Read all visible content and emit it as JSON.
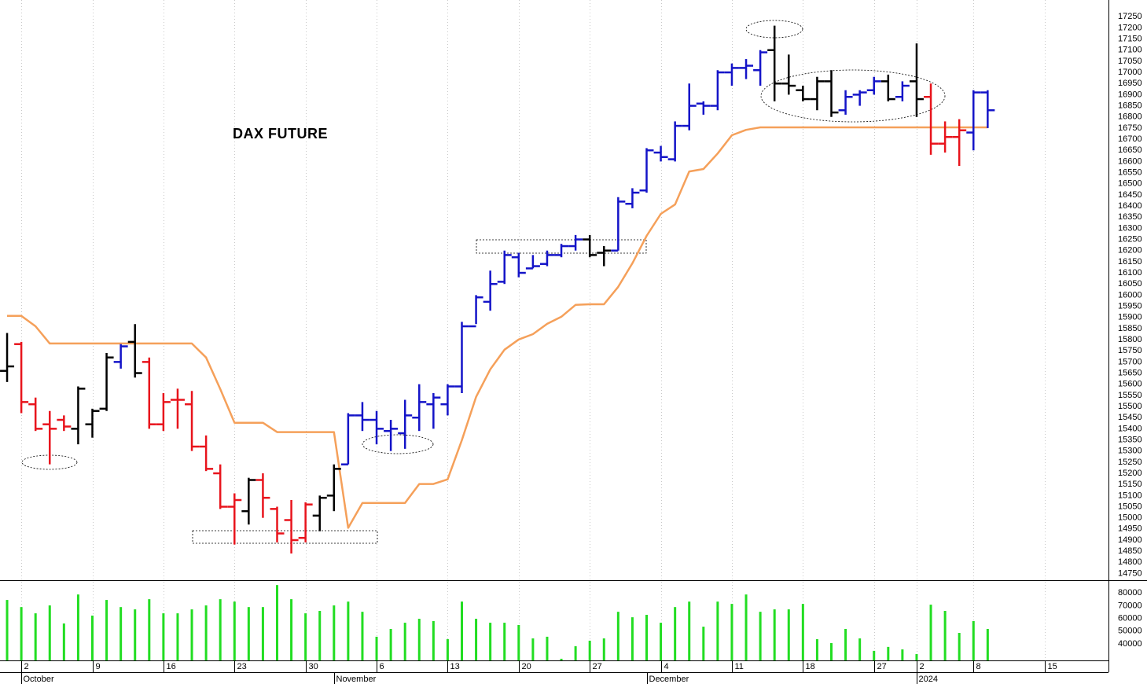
{
  "chart_data": {
    "type": "ohlc",
    "title": "DAX FUTURE",
    "x": [
      0,
      1,
      2,
      3,
      4,
      5,
      6,
      7,
      8,
      9,
      10,
      11,
      12,
      13,
      14,
      15,
      16,
      17,
      18,
      19,
      20,
      21,
      22,
      23,
      24,
      25,
      26,
      27,
      28,
      29,
      30,
      31,
      32,
      33,
      34,
      35,
      36,
      37,
      38,
      39,
      40,
      41,
      42,
      43,
      44,
      45,
      46,
      47,
      48,
      49,
      50,
      51,
      52,
      53,
      54,
      55,
      56,
      57,
      58,
      59,
      60,
      61,
      62,
      63,
      64,
      65,
      66,
      67,
      68,
      69
    ],
    "xlim": [
      -0.5,
      77.5
    ],
    "xticks": [
      {
        "value": 1,
        "label": "2"
      },
      {
        "value": 6,
        "label": "9"
      },
      {
        "value": 11,
        "label": "16"
      },
      {
        "value": 16,
        "label": "23"
      },
      {
        "value": 21,
        "label": "30"
      },
      {
        "value": 26,
        "label": "6"
      },
      {
        "value": 31,
        "label": "13"
      },
      {
        "value": 36,
        "label": "20"
      },
      {
        "value": 41,
        "label": "27"
      },
      {
        "value": 46,
        "label": "4"
      },
      {
        "value": 51,
        "label": "11"
      },
      {
        "value": 56,
        "label": "18"
      },
      {
        "value": 61,
        "label": "27"
      },
      {
        "value": 64,
        "label": "2"
      },
      {
        "value": 68,
        "label": "8"
      },
      {
        "value": 73,
        "label": "15"
      }
    ],
    "month_ticks": [
      {
        "value": 1,
        "label": "October"
      },
      {
        "value": 23,
        "label": "November"
      },
      {
        "value": 45,
        "label": "December"
      },
      {
        "value": 64,
        "label": "2024"
      }
    ],
    "open": [
      15660,
      15780,
      15510,
      15420,
      15440,
      15400,
      15420,
      15490,
      15700,
      15790,
      15700,
      15420,
      15530,
      15510,
      15320,
      15200,
      15050,
      15030,
      15170,
      15040,
      14990,
      14910,
      15010,
      15100,
      15240,
      15460,
      15440,
      15390,
      15380,
      15450,
      15510,
      15510,
      15590,
      15860,
      15970,
      16060,
      16170,
      16120,
      16140,
      16180,
      16220,
      16250,
      16190,
      16200,
      16410,
      16470,
      16640,
      16610,
      16760,
      16860,
      16850,
      17000,
      17020,
      17010,
      17100,
      16950,
      16920,
      16880,
      16960,
      16830,
      16900,
      16920,
      16960,
      16890,
      16960,
      16890,
      16680,
      16710,
      16730,
      16910
    ],
    "high": [
      15830,
      15790,
      15540,
      15480,
      15460,
      15590,
      15490,
      15740,
      15780,
      15870,
      15720,
      15560,
      15580,
      15570,
      15370,
      15240,
      15110,
      15180,
      15200,
      15050,
      15080,
      15070,
      15100,
      15240,
      15470,
      15520,
      15480,
      15440,
      15530,
      15600,
      15560,
      15600,
      15880,
      16000,
      16110,
      16200,
      16190,
      16180,
      16200,
      16230,
      16270,
      16270,
      16220,
      16440,
      16480,
      16660,
      16670,
      16780,
      16950,
      16870,
      17010,
      17040,
      17060,
      17100,
      17210,
      17080,
      16940,
      16980,
      17010,
      16920,
      16920,
      16980,
      16990,
      16960,
      17130,
      16950,
      16780,
      16790,
      16920,
      16920
    ],
    "low": [
      15610,
      15470,
      15390,
      15240,
      15390,
      15330,
      15360,
      15480,
      15670,
      15630,
      15400,
      15390,
      15400,
      15300,
      15210,
      15040,
      14880,
      14970,
      15000,
      14890,
      14840,
      14890,
      14940,
      15030,
      15240,
      15390,
      15330,
      15300,
      15310,
      15390,
      15400,
      15460,
      15560,
      15870,
      15930,
      16050,
      16080,
      16120,
      16130,
      16170,
      16200,
      16170,
      16130,
      16200,
      16390,
      16460,
      16600,
      16600,
      16740,
      16810,
      16830,
      16940,
      16970,
      16940,
      16870,
      16900,
      16870,
      16830,
      16800,
      16810,
      16850,
      16900,
      16870,
      16870,
      16800,
      16630,
      16640,
      16580,
      16650,
      16750
    ],
    "close": [
      15680,
      15520,
      15400,
      15400,
      15410,
      15580,
      15480,
      15720,
      15770,
      15650,
      15420,
      15520,
      15530,
      15320,
      15220,
      15050,
      15080,
      15170,
      15090,
      14930,
      14900,
      15060,
      15090,
      15220,
      15460,
      15440,
      15400,
      15400,
      15460,
      15520,
      15540,
      15590,
      15860,
      15990,
      16050,
      16180,
      16100,
      16130,
      16180,
      16220,
      16250,
      16180,
      16200,
      16420,
      16460,
      16650,
      16620,
      16760,
      16850,
      16850,
      17000,
      17020,
      17030,
      17090,
      16950,
      16940,
      16880,
      16960,
      16820,
      16890,
      16910,
      16960,
      16880,
      16940,
      16880,
      16680,
      16710,
      16740,
      16910,
      16830
    ],
    "bar_colors": [
      "#000000",
      "#e8141c",
      "#e8141c",
      "#e8141c",
      "#e8141c",
      "#000000",
      "#000000",
      "#000000",
      "#1414c8",
      "#000000",
      "#e8141c",
      "#e8141c",
      "#e8141c",
      "#e8141c",
      "#e8141c",
      "#e8141c",
      "#e8141c",
      "#000000",
      "#e8141c",
      "#e8141c",
      "#e8141c",
      "#e8141c",
      "#000000",
      "#000000",
      "#1414c8",
      "#1414c8",
      "#1414c8",
      "#1414c8",
      "#1414c8",
      "#1414c8",
      "#1414c8",
      "#1414c8",
      "#1414c8",
      "#1414c8",
      "#1414c8",
      "#1414c8",
      "#1414c8",
      "#1414c8",
      "#1414c8",
      "#1414c8",
      "#1414c8",
      "#000000",
      "#000000",
      "#1414c8",
      "#1414c8",
      "#1414c8",
      "#1414c8",
      "#1414c8",
      "#1414c8",
      "#1414c8",
      "#1414c8",
      "#1414c8",
      "#1414c8",
      "#1414c8",
      "#000000",
      "#000000",
      "#000000",
      "#000000",
      "#000000",
      "#1414c8",
      "#1414c8",
      "#1414c8",
      "#000000",
      "#1414c8",
      "#000000",
      "#e8141c",
      "#e8141c",
      "#e8141c",
      "#1414c8",
      "#1414c8"
    ],
    "stop_line": {
      "color": "#f5a05a",
      "values": [
        15907,
        15907,
        15860,
        15783,
        15783,
        15783,
        15783,
        15783,
        15783,
        15783,
        15783,
        15783,
        15783,
        15783,
        15720,
        15578,
        15427,
        15427,
        15427,
        15385,
        15385,
        15385,
        15385,
        15385,
        14955,
        15067,
        15067,
        15067,
        15067,
        15152,
        15152,
        15173,
        15349,
        15543,
        15667,
        15755,
        15801,
        15825,
        15871,
        15903,
        15956,
        15959,
        15959,
        16037,
        16143,
        16266,
        16365,
        16407,
        16555,
        16566,
        16636,
        16718,
        16742,
        16753,
        16753,
        16753,
        16753,
        16753,
        16753,
        16753,
        16753,
        16753,
        16753,
        16753,
        16753,
        16753,
        16753,
        16753,
        16753,
        16753
      ]
    },
    "ylim": [
      14720,
      17325
    ],
    "yticks": [
      14750,
      14800,
      14850,
      14900,
      14950,
      15000,
      15050,
      15100,
      15150,
      15200,
      15250,
      15300,
      15350,
      15400,
      15450,
      15500,
      15550,
      15600,
      15650,
      15700,
      15750,
      15800,
      15850,
      15900,
      15950,
      16000,
      16050,
      16100,
      16150,
      16200,
      16250,
      16300,
      16350,
      16400,
      16450,
      16500,
      16550,
      16600,
      16650,
      16700,
      16750,
      16800,
      16850,
      16900,
      16950,
      17000,
      17050,
      17100,
      17150,
      17200,
      17250
    ],
    "volume": {
      "color": "#22dd22",
      "values": [
        74500,
        68900,
        64000,
        70200,
        56000,
        78800,
        62200,
        74500,
        68900,
        67100,
        75100,
        64000,
        64000,
        67100,
        70200,
        75100,
        73200,
        68900,
        68900,
        86200,
        75100,
        64000,
        65900,
        70200,
        73200,
        65200,
        45600,
        51700,
        56600,
        59700,
        57900,
        43700,
        73200,
        59700,
        56600,
        56600,
        54800,
        44300,
        45600,
        28300,
        38200,
        42500,
        44300,
        65200,
        60900,
        62800,
        56600,
        68900,
        73200,
        53500,
        73200,
        71400,
        78800,
        65200,
        67100,
        67100,
        71400,
        43700,
        40600,
        51700,
        44300,
        34500,
        37600,
        35700,
        32000,
        70800,
        65900,
        48600,
        57900,
        51700
      ],
      "ylim": [
        27000,
        90000
      ],
      "yticks": [
        40000,
        50000,
        60000,
        70000,
        80000
      ]
    }
  }
}
